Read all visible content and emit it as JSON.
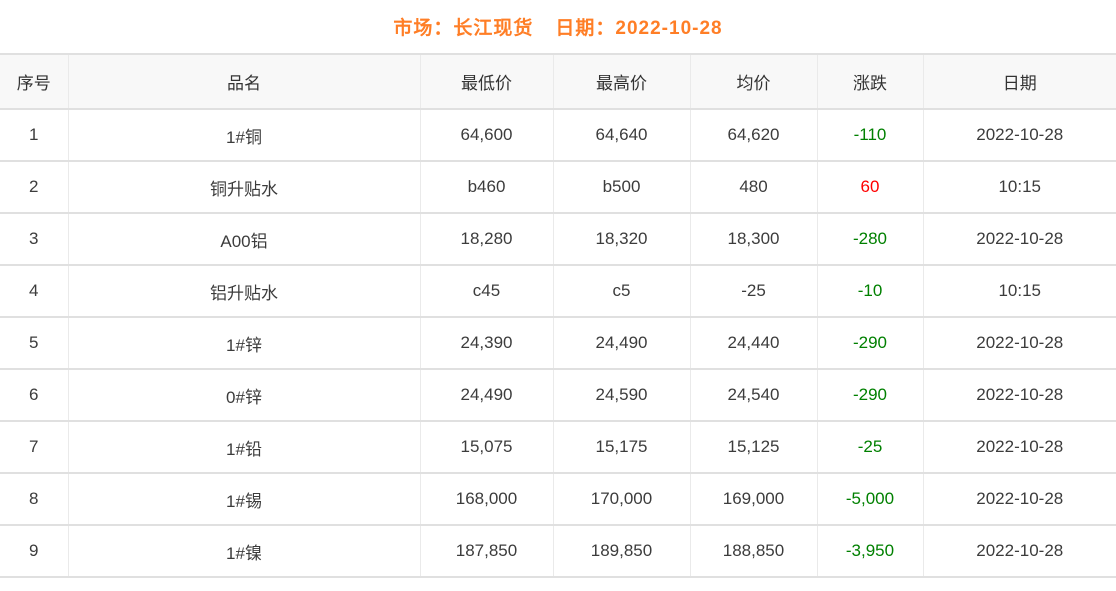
{
  "header": {
    "market_label": "市场：长江现货",
    "date_label": "日期：2022-10-28"
  },
  "colors": {
    "accent_orange": "#ff7e26",
    "up_red": "#ff0000",
    "down_green": "#008000",
    "header_bg": "#f8f8f8",
    "text": "#3c3c3c"
  },
  "table": {
    "columns": [
      "序号",
      "品名",
      "最低价",
      "最高价",
      "均价",
      "涨跌",
      "日期"
    ],
    "rows": [
      {
        "index": "1",
        "name": "1#铜",
        "low": "64,600",
        "high": "64,640",
        "avg": "64,620",
        "change": "-110",
        "change_dir": "down",
        "date": "2022-10-28"
      },
      {
        "index": "2",
        "name": "铜升贴水",
        "low": "b460",
        "high": "b500",
        "avg": "480",
        "change": "60",
        "change_dir": "up",
        "date": "10:15"
      },
      {
        "index": "3",
        "name": "A00铝",
        "low": "18,280",
        "high": "18,320",
        "avg": "18,300",
        "change": "-280",
        "change_dir": "down",
        "date": "2022-10-28"
      },
      {
        "index": "4",
        "name": "铝升贴水",
        "low": "c45",
        "high": "c5",
        "avg": "-25",
        "change": "-10",
        "change_dir": "down",
        "date": "10:15"
      },
      {
        "index": "5",
        "name": "1#锌",
        "low": "24,390",
        "high": "24,490",
        "avg": "24,440",
        "change": "-290",
        "change_dir": "down",
        "date": "2022-10-28"
      },
      {
        "index": "6",
        "name": "0#锌",
        "low": "24,490",
        "high": "24,590",
        "avg": "24,540",
        "change": "-290",
        "change_dir": "down",
        "date": "2022-10-28"
      },
      {
        "index": "7",
        "name": "1#铅",
        "low": "15,075",
        "high": "15,175",
        "avg": "15,125",
        "change": "-25",
        "change_dir": "down",
        "date": "2022-10-28"
      },
      {
        "index": "8",
        "name": "1#锡",
        "low": "168,000",
        "high": "170,000",
        "avg": "169,000",
        "change": "-5,000",
        "change_dir": "down",
        "date": "2022-10-28"
      },
      {
        "index": "9",
        "name": "1#镍",
        "low": "187,850",
        "high": "189,850",
        "avg": "188,850",
        "change": "-3,950",
        "change_dir": "down",
        "date": "2022-10-28"
      }
    ]
  }
}
